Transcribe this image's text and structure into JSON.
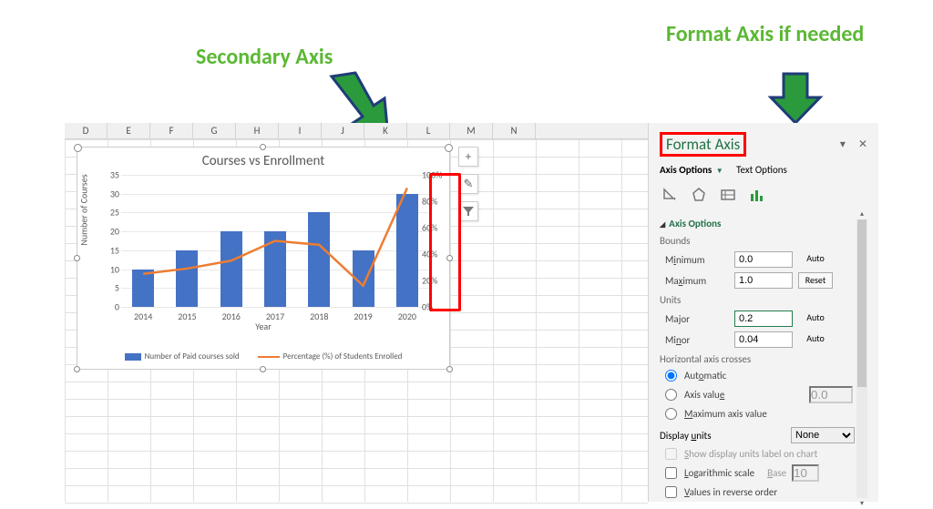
{
  "callouts": {
    "secondary_axis": "Secondary Axis",
    "format_axis": "Format Axis if needed"
  },
  "columns": [
    "D",
    "E",
    "F",
    "G",
    "H",
    "I",
    "J",
    "K",
    "L",
    "M",
    "N"
  ],
  "chart": {
    "title": "Courses vs Enrollment",
    "y_label": "Number of Courses",
    "x_label": "Year",
    "y_ticks": [
      0,
      5,
      10,
      15,
      20,
      25,
      30,
      35
    ],
    "y_max": 35,
    "y2_ticks": [
      "0%",
      "20%",
      "40%",
      "60%",
      "80%",
      "100%"
    ],
    "y2_max": 100,
    "categories": [
      "2014",
      "2015",
      "2016",
      "2017",
      "2018",
      "2019",
      "2020"
    ],
    "bar_values": [
      10,
      15,
      20,
      20,
      25,
      15,
      30
    ],
    "line_values_pct": [
      25,
      29,
      35,
      50,
      47,
      16,
      90
    ],
    "bar_color": "#4472c4",
    "line_color": "#ed7d31",
    "legend_bar": "Number of Paid courses sold",
    "legend_line": "Percentage (%) of Students Enrolled"
  },
  "chart_tools": {
    "plus": "+",
    "brush": "✎",
    "filter": "▼"
  },
  "pane": {
    "title": "Format Axis",
    "tabs": {
      "axis_options": "Axis Options",
      "text_options": "Text Options"
    },
    "section_title": "Axis Options",
    "bounds_label": "Bounds",
    "minimum_label": "Minimum",
    "minimum_value": "0.0",
    "auto": "Auto",
    "maximum_label": "Maximum",
    "maximum_value": "1.0",
    "reset": "Reset",
    "units_label": "Units",
    "major_label": "Major",
    "major_value": "0.2",
    "minor_label": "Minor",
    "minor_value": "0.04",
    "hcross_label": "Horizontal axis crosses",
    "automatic": "Automatic",
    "axis_value": "Axis value",
    "axis_value_val": "0.0",
    "max_axis_value": "Maximum axis value",
    "display_units": "Display units",
    "display_units_val": "None",
    "show_units_label": "Show display units label on chart",
    "log_scale": "Logarithmic scale",
    "base_label": "Base",
    "base_val": "10",
    "reverse": "Values in reverse order"
  }
}
